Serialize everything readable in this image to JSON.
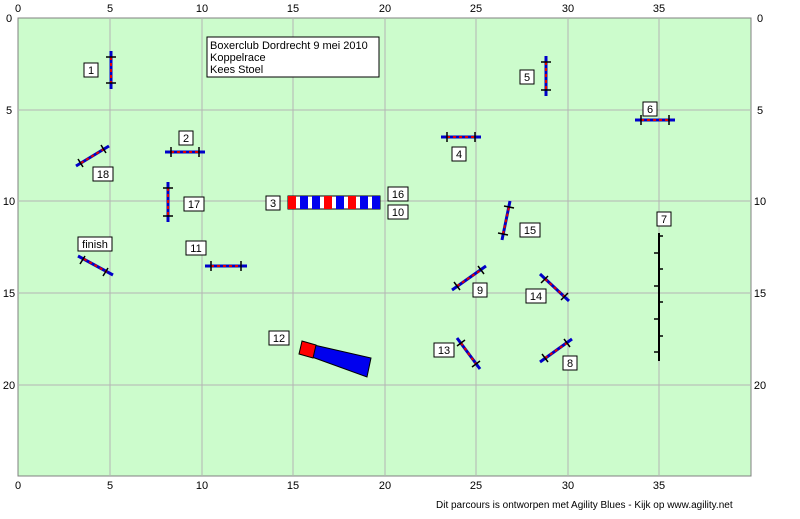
{
  "info": {
    "line1": "Boxerclub Dordrecht 9 mei 2010",
    "line2": "Koppelrace",
    "line3": "Kees Stoel"
  },
  "credit": "Dit parcours is ontworpen met Agility Blues - Kijk op www.agility.net",
  "colors": {
    "field": "#ccfccc",
    "grid": "#b4b4b4",
    "bar_blue": "#0000c8",
    "bar_red": "#e00000",
    "tunnel_blue": "#0000ee",
    "tunnel_red": "#ff0000",
    "weave": "#000000"
  },
  "axes": {
    "x_ticks": [
      "0",
      "5",
      "10",
      "15",
      "20",
      "25",
      "30",
      "35"
    ],
    "y_ticks": [
      "0",
      "5",
      "10",
      "15",
      "20"
    ]
  },
  "labels": {
    "o1": "1",
    "o2": "2",
    "o3": "3",
    "o4": "4",
    "o5": "5",
    "o6": "6",
    "o7": "7",
    "o8": "8",
    "o9": "9",
    "o10": "10",
    "o11": "11",
    "o12": "12",
    "o13": "13",
    "o14": "14",
    "o15": "15",
    "o16": "16",
    "o17": "17",
    "o18": "18",
    "finish": "finish"
  }
}
